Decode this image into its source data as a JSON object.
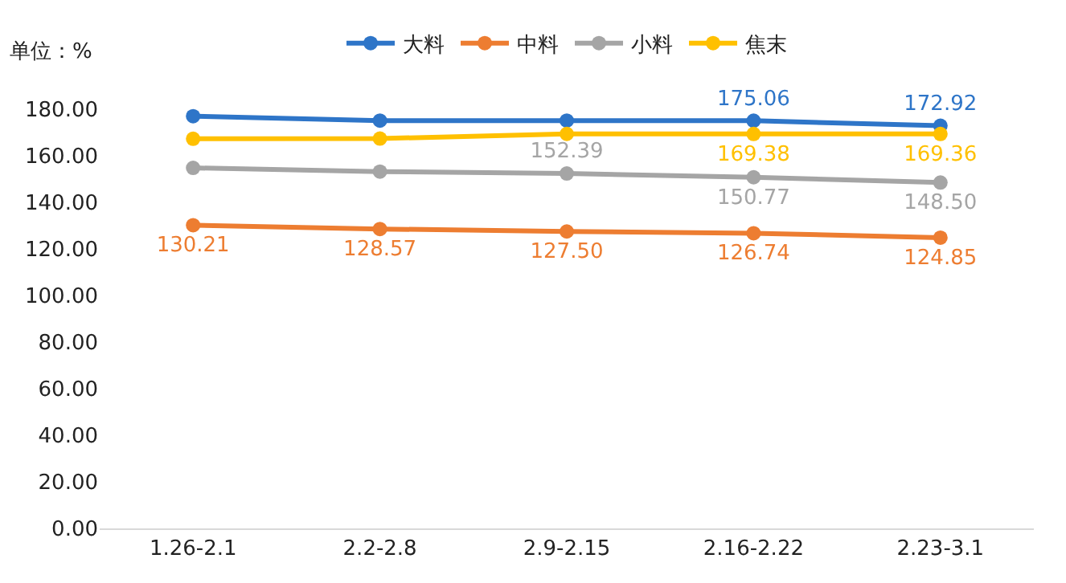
{
  "chart_data": {
    "type": "line",
    "ylabel": "单位：%",
    "categories": [
      "1.26-2.1",
      "2.2-2.8",
      "2.9-2.15",
      "2.16-2.22",
      "2.23-3.1"
    ],
    "series": [
      {
        "name": "大料",
        "color": "#2e75c8",
        "values": [
          177.0,
          175.1,
          175.1,
          175.06,
          172.92
        ],
        "value_labels": [
          null,
          null,
          null,
          "175.06",
          "172.92"
        ]
      },
      {
        "name": "中料",
        "color": "#ed7d31",
        "values": [
          130.21,
          128.57,
          127.5,
          126.74,
          124.85
        ],
        "value_labels": [
          "130.21",
          "128.57",
          "127.50",
          "126.74",
          "124.85"
        ]
      },
      {
        "name": "小料",
        "color": "#a5a5a5",
        "values": [
          154.8,
          153.2,
          152.39,
          150.77,
          148.5
        ],
        "value_labels": [
          null,
          null,
          "152.39",
          "150.77",
          "148.50"
        ]
      },
      {
        "name": "焦末",
        "color": "#ffc000",
        "values": [
          167.3,
          167.4,
          169.4,
          169.38,
          169.36
        ],
        "value_labels": [
          null,
          null,
          null,
          "169.38",
          "169.36"
        ]
      }
    ],
    "ylim": [
      0,
      180
    ],
    "yticks": [
      {
        "value": 0,
        "label": "0.00"
      },
      {
        "value": 20,
        "label": "20.00"
      },
      {
        "value": 40,
        "label": "40.00"
      },
      {
        "value": 60,
        "label": "60.00"
      },
      {
        "value": 80,
        "label": "80.00"
      },
      {
        "value": 100,
        "label": "100.00"
      },
      {
        "value": 120,
        "label": "120.00"
      },
      {
        "value": 140,
        "label": "140.00"
      },
      {
        "value": 160,
        "label": "160.00"
      },
      {
        "value": 180,
        "label": "180.00"
      }
    ],
    "grid": false,
    "legend": "top",
    "marker": "circle",
    "line_style": "solid"
  }
}
